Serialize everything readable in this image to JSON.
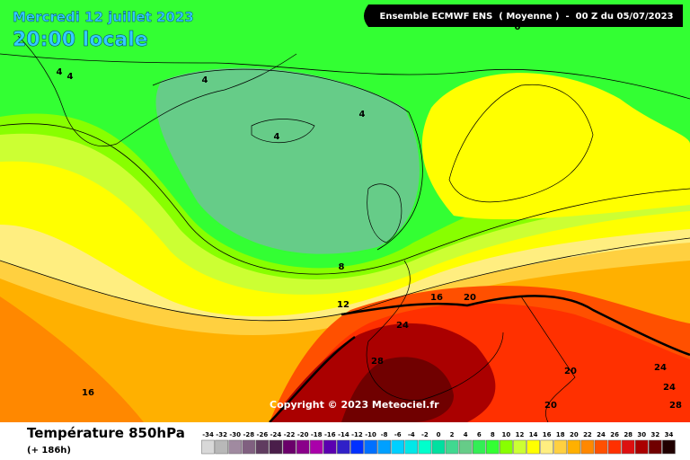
{
  "header": {
    "date": "Mercredi 12 juillet 2023",
    "time": "20:00 locale",
    "model": "Ensemble ECMWF ENS  ( Moyenne )  -  00 Z du 05/07/2023"
  },
  "copyright": "Copyright © 2023 Meteociel.fr",
  "contour_labels": [
    0,
    4,
    4,
    4,
    4,
    4,
    8,
    12,
    16,
    20,
    24,
    28,
    20,
    24,
    24,
    28,
    20,
    16
  ],
  "footer": {
    "title": "Température 850hPa",
    "subtitle": "(+ 186h)"
  },
  "scale": {
    "values": [
      -34,
      -32,
      -30,
      -28,
      -26,
      -24,
      -22,
      -20,
      -18,
      -16,
      -14,
      -12,
      -10,
      -8,
      -6,
      -4,
      -2,
      0,
      2,
      4,
      6,
      8,
      10,
      12,
      14,
      16,
      18,
      20,
      22,
      24,
      26,
      28,
      30,
      32,
      34
    ],
    "colors": [
      "#d8d8d8",
      "#b8b8b8",
      "#a08aa0",
      "#806080",
      "#603c60",
      "#4a1e4a",
      "#6a006a",
      "#8a008a",
      "#aa00aa",
      "#5a00b0",
      "#3020c8",
      "#0030ff",
      "#0070ff",
      "#00a0ff",
      "#00d0ff",
      "#00e8e8",
      "#00ffcc",
      "#00e0a0",
      "#40d890",
      "#66cc88",
      "#33ee55",
      "#33ff33",
      "#88ff00",
      "#ccff33",
      "#ffff00",
      "#ffee80",
      "#ffd040",
      "#ffb000",
      "#ff8800",
      "#ff5000",
      "#ff3000",
      "#dd1010",
      "#aa0000",
      "#700000",
      "#200000"
    ]
  }
}
